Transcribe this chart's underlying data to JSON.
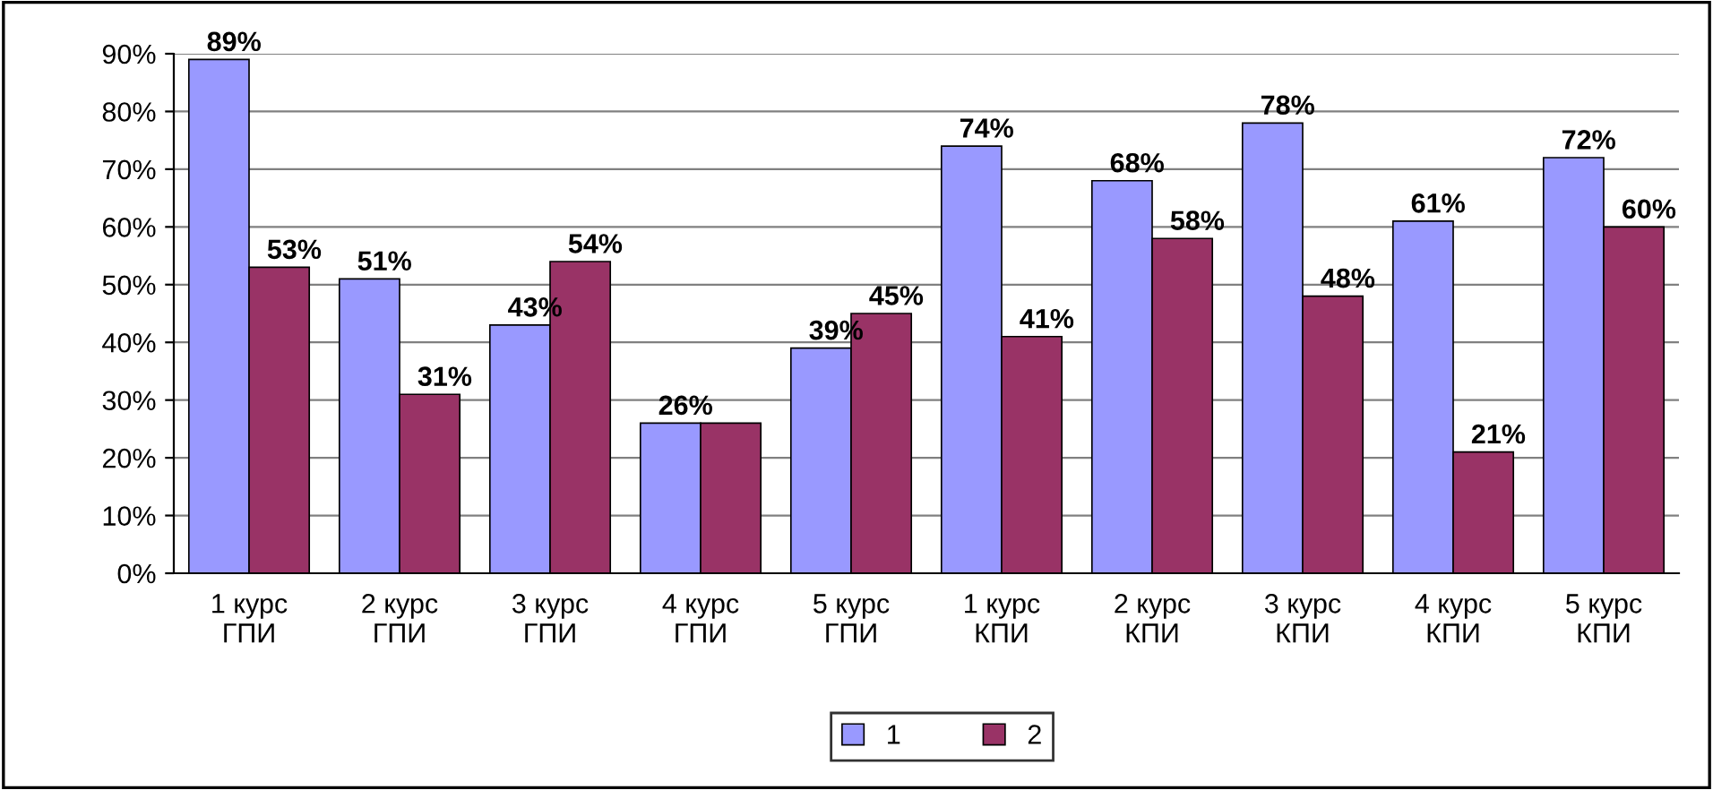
{
  "chart_data": {
    "type": "bar",
    "categories": [
      "1 курс\nГПИ",
      "2 курс\nГПИ",
      "3 курс\nГПИ",
      "4 курс\nГПИ",
      "5 курс\nГПИ",
      "1 курс\nКПИ",
      "2 курс\nКПИ",
      "3 курс\nКПИ",
      "4 курс\nКПИ",
      "5 курс\nКПИ"
    ],
    "series": [
      {
        "name": "1",
        "color": "#9999ff",
        "values": [
          89,
          51,
          43,
          26,
          39,
          74,
          68,
          78,
          61,
          72
        ],
        "value_labels": [
          "89%",
          "51%",
          "43%",
          "26%",
          "39%",
          "74%",
          "68%",
          "78%",
          "61%",
          "72%"
        ]
      },
      {
        "name": "2",
        "color": "#993366",
        "values": [
          53,
          31,
          54,
          26,
          45,
          41,
          58,
          48,
          21,
          60
        ],
        "value_labels": [
          "53%",
          "31%",
          "54%",
          null,
          "45%",
          "41%",
          "58%",
          "48%",
          "21%",
          "60%"
        ]
      }
    ],
    "ylim": [
      0,
      90
    ],
    "yticks": [
      {
        "value": 0,
        "label": "0%"
      },
      {
        "value": 10,
        "label": "10%"
      },
      {
        "value": 20,
        "label": "20%"
      },
      {
        "value": 30,
        "label": "30%"
      },
      {
        "value": 40,
        "label": "40%"
      },
      {
        "value": 50,
        "label": "50%"
      },
      {
        "value": 60,
        "label": "60%"
      },
      {
        "value": 70,
        "label": "70%"
      },
      {
        "value": 80,
        "label": "80%"
      },
      {
        "value": 90,
        "label": "90%"
      }
    ],
    "grid": "y",
    "legend": "bottom"
  }
}
